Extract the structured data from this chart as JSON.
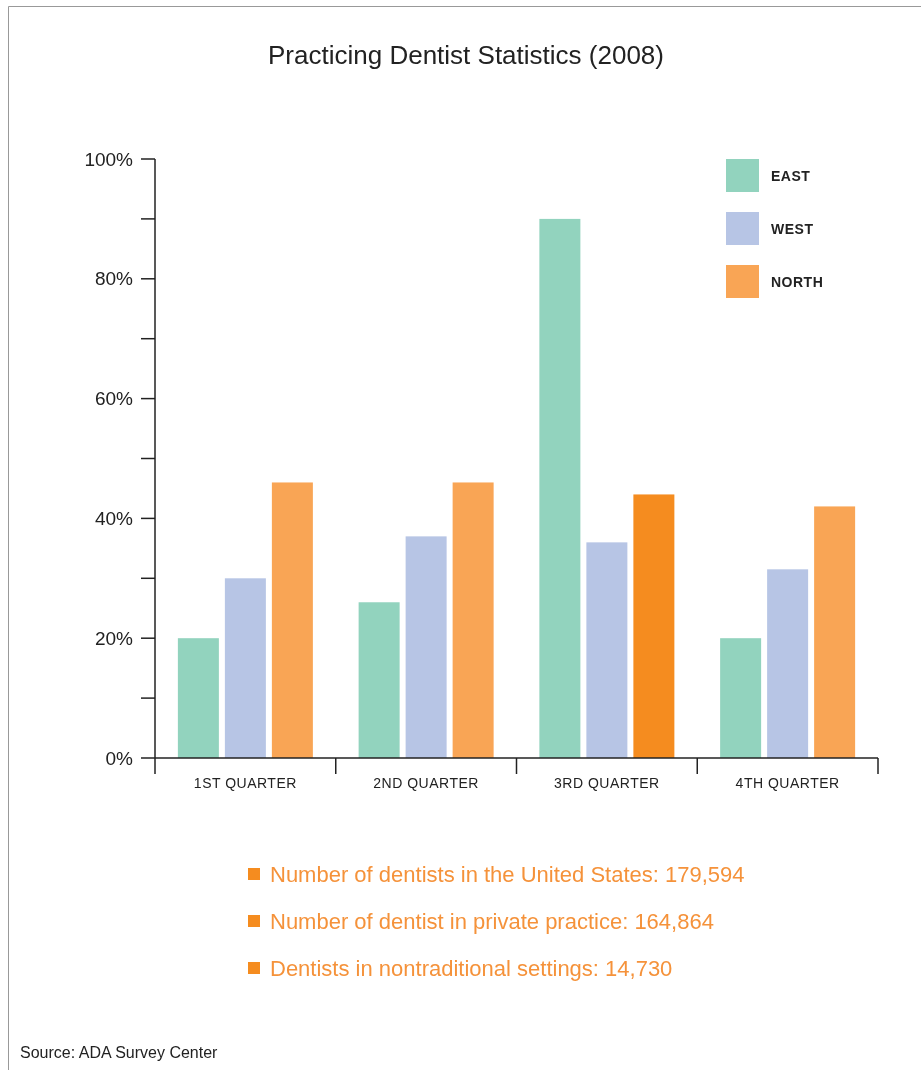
{
  "chart_data": {
    "type": "bar",
    "title": "Practicing Dentist Statistics (2008)",
    "categories": [
      "1ST QUARTER",
      "2ND QUARTER",
      "3RD QUARTER",
      "4TH QUARTER"
    ],
    "series": [
      {
        "name": "EAST",
        "color": "#92d3be",
        "values": [
          20,
          26,
          90,
          20
        ]
      },
      {
        "name": "WEST",
        "color": "#b7c5e5",
        "values": [
          30,
          37,
          36,
          31.5
        ]
      },
      {
        "name": "NORTH",
        "color": "#f9a555",
        "colors": [
          "#f9a555",
          "#f9a555",
          "#f58c1f",
          "#f9a555"
        ],
        "values": [
          46,
          46,
          44,
          42
        ]
      }
    ],
    "ylim": [
      0,
      100
    ],
    "yticks": [
      {
        "value": 0,
        "label": "0%"
      },
      {
        "value": 10,
        "label": null
      },
      {
        "value": 20,
        "label": "20%"
      },
      {
        "value": 30,
        "label": null
      },
      {
        "value": 40,
        "label": "40%"
      },
      {
        "value": 50,
        "label": null
      },
      {
        "value": 60,
        "label": "60%"
      },
      {
        "value": 70,
        "label": null
      },
      {
        "value": 80,
        "label": "80%"
      },
      {
        "value": 90,
        "label": null
      },
      {
        "value": 100,
        "label": "100%"
      }
    ],
    "grid": false,
    "legend": "top right",
    "annotations": [
      "Number of dentists in the United States: 179,594",
      "Number of dentist in private practice: 164,864",
      "Dentists in nontraditional settings: 14,730",
      "Source: ADA Survey Center"
    ]
  }
}
